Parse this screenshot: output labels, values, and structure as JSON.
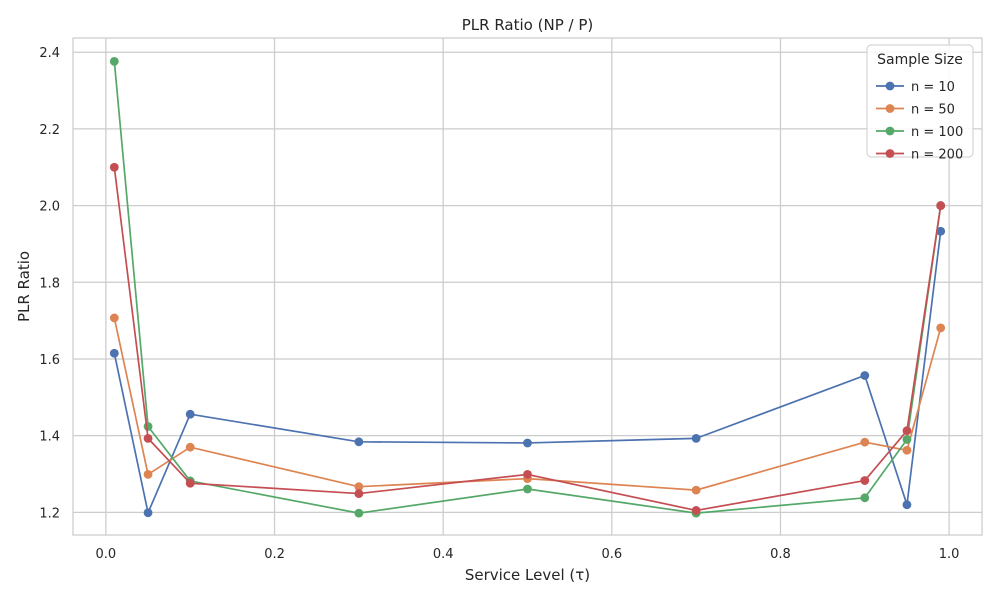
{
  "chart_data": {
    "type": "line",
    "title": "PLR Ratio (NP / P)",
    "xlabel": "Service Level (τ)",
    "ylabel": "PLR Ratio",
    "x": [
      0.01,
      0.05,
      0.1,
      0.3,
      0.5,
      0.7,
      0.9,
      0.95,
      0.99
    ],
    "xlim": [
      -0.039,
      1.039
    ],
    "ylim": [
      1.141,
      2.437
    ],
    "xticks": [
      0.0,
      0.2,
      0.4,
      0.6,
      0.8,
      1.0
    ],
    "xtick_labels": [
      "0.0",
      "0.2",
      "0.4",
      "0.6",
      "0.8",
      "1.0"
    ],
    "yticks": [
      1.2,
      1.4,
      1.6,
      1.8,
      2.0,
      2.2,
      2.4
    ],
    "ytick_labels": [
      "1.2",
      "1.4",
      "1.6",
      "1.8",
      "2.0",
      "2.2",
      "2.4"
    ],
    "grid": true,
    "legend": {
      "title": "Sample Size",
      "position": "top-right"
    },
    "series": [
      {
        "name": "n = 10",
        "color": "#4c72b0",
        "values": [
          1.615,
          1.199,
          1.456,
          1.384,
          1.381,
          1.393,
          1.557,
          1.22,
          1.933
        ]
      },
      {
        "name": "n = 50",
        "color": "#dd8452",
        "values": [
          1.707,
          1.299,
          1.37,
          1.267,
          1.288,
          1.258,
          1.383,
          1.362,
          1.681
        ]
      },
      {
        "name": "n = 100",
        "color": "#55a868",
        "values": [
          2.376,
          1.424,
          1.282,
          1.198,
          1.261,
          1.198,
          1.238,
          1.39,
          2.0
        ]
      },
      {
        "name": "n = 200",
        "color": "#c44e52",
        "values": [
          2.1,
          1.393,
          1.276,
          1.249,
          1.299,
          1.205,
          1.283,
          1.413,
          2.0
        ]
      }
    ]
  }
}
